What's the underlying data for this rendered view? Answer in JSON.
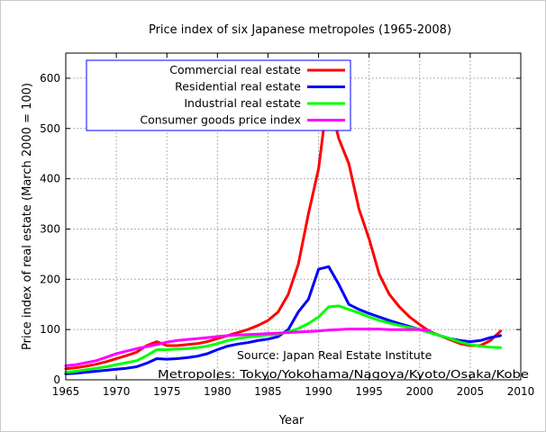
{
  "chart_data": {
    "type": "line",
    "title": "Price index of six Japanese metropoles (1965-2008)",
    "xlabel": "Year",
    "ylabel": "Price index of real estate (March 2000 = 100)",
    "xlim": [
      1965,
      2010
    ],
    "ylim": [
      0,
      650
    ],
    "xticks": [
      1965,
      1970,
      1975,
      1980,
      1985,
      1990,
      1995,
      2000,
      2005,
      2010
    ],
    "yticks": [
      0,
      100,
      200,
      300,
      400,
      500,
      600
    ],
    "grid": true,
    "legend_position": "top-left",
    "annotations": [
      "Source: Japan Real Estate Institute",
      "Metropoles: Tokyo/Yokohama/Nagoya/Kyoto/Osaka/Kobe"
    ],
    "series": [
      {
        "name": "Commercial real estate",
        "color": "#ff0000",
        "points": [
          [
            1965,
            22
          ],
          [
            1966,
            24
          ],
          [
            1967,
            27
          ],
          [
            1968,
            31
          ],
          [
            1969,
            36
          ],
          [
            1970,
            42
          ],
          [
            1971,
            48
          ],
          [
            1972,
            55
          ],
          [
            1973,
            68
          ],
          [
            1974,
            76
          ],
          [
            1975,
            68
          ],
          [
            1976,
            68
          ],
          [
            1977,
            70
          ],
          [
            1978,
            72
          ],
          [
            1979,
            76
          ],
          [
            1980,
            82
          ],
          [
            1981,
            88
          ],
          [
            1982,
            94
          ],
          [
            1983,
            100
          ],
          [
            1984,
            108
          ],
          [
            1985,
            118
          ],
          [
            1986,
            135
          ],
          [
            1987,
            170
          ],
          [
            1988,
            230
          ],
          [
            1989,
            330
          ],
          [
            1990,
            420
          ],
          [
            1990.5,
            500
          ],
          [
            1991,
            510
          ],
          [
            1991.5,
            520
          ],
          [
            1992,
            480
          ],
          [
            1993,
            430
          ],
          [
            1994,
            340
          ],
          [
            1995,
            280
          ],
          [
            1996,
            210
          ],
          [
            1997,
            170
          ],
          [
            1998,
            145
          ],
          [
            1999,
            125
          ],
          [
            2000,
            110
          ],
          [
            2001,
            96
          ],
          [
            2002,
            88
          ],
          [
            2003,
            80
          ],
          [
            2004,
            72
          ],
          [
            2005,
            68
          ],
          [
            2006,
            68
          ],
          [
            2007,
            78
          ],
          [
            2008,
            97
          ]
        ]
      },
      {
        "name": "Residential real estate",
        "color": "#0000ff",
        "points": [
          [
            1965,
            12
          ],
          [
            1966,
            13
          ],
          [
            1967,
            15
          ],
          [
            1968,
            17
          ],
          [
            1969,
            19
          ],
          [
            1970,
            21
          ],
          [
            1971,
            23
          ],
          [
            1972,
            26
          ],
          [
            1973,
            33
          ],
          [
            1974,
            42
          ],
          [
            1975,
            41
          ],
          [
            1976,
            42
          ],
          [
            1977,
            44
          ],
          [
            1978,
            47
          ],
          [
            1979,
            52
          ],
          [
            1980,
            60
          ],
          [
            1981,
            67
          ],
          [
            1982,
            71
          ],
          [
            1983,
            74
          ],
          [
            1984,
            78
          ],
          [
            1985,
            81
          ],
          [
            1986,
            86
          ],
          [
            1987,
            100
          ],
          [
            1988,
            135
          ],
          [
            1989,
            160
          ],
          [
            1990,
            220
          ],
          [
            1991,
            225
          ],
          [
            1992,
            190
          ],
          [
            1993,
            150
          ],
          [
            1994,
            140
          ],
          [
            1995,
            132
          ],
          [
            1996,
            125
          ],
          [
            1997,
            118
          ],
          [
            1998,
            112
          ],
          [
            1999,
            106
          ],
          [
            2000,
            100
          ],
          [
            2001,
            94
          ],
          [
            2002,
            88
          ],
          [
            2003,
            82
          ],
          [
            2004,
            78
          ],
          [
            2005,
            76
          ],
          [
            2006,
            78
          ],
          [
            2007,
            84
          ],
          [
            2008,
            88
          ]
        ]
      },
      {
        "name": "Industrial real estate",
        "color": "#00ff00",
        "points": [
          [
            1965,
            15
          ],
          [
            1966,
            17
          ],
          [
            1967,
            20
          ],
          [
            1968,
            23
          ],
          [
            1969,
            26
          ],
          [
            1970,
            30
          ],
          [
            1971,
            34
          ],
          [
            1972,
            38
          ],
          [
            1973,
            48
          ],
          [
            1974,
            60
          ],
          [
            1975,
            60
          ],
          [
            1976,
            61
          ],
          [
            1977,
            62
          ],
          [
            1978,
            64
          ],
          [
            1979,
            67
          ],
          [
            1980,
            72
          ],
          [
            1981,
            78
          ],
          [
            1982,
            82
          ],
          [
            1983,
            85
          ],
          [
            1984,
            87
          ],
          [
            1985,
            89
          ],
          [
            1986,
            91
          ],
          [
            1987,
            95
          ],
          [
            1988,
            102
          ],
          [
            1989,
            112
          ],
          [
            1990,
            125
          ],
          [
            1991,
            145
          ],
          [
            1992,
            147
          ],
          [
            1993,
            140
          ],
          [
            1994,
            133
          ],
          [
            1995,
            125
          ],
          [
            1996,
            118
          ],
          [
            1997,
            113
          ],
          [
            1998,
            108
          ],
          [
            1999,
            104
          ],
          [
            2000,
            100
          ],
          [
            2001,
            94
          ],
          [
            2002,
            88
          ],
          [
            2003,
            82
          ],
          [
            2004,
            75
          ],
          [
            2005,
            70
          ],
          [
            2006,
            67
          ],
          [
            2007,
            65
          ],
          [
            2008,
            64
          ]
        ]
      },
      {
        "name": "Consumer goods price index",
        "color": "#ff00ff",
        "points": [
          [
            1965,
            28
          ],
          [
            1966,
            30
          ],
          [
            1967,
            34
          ],
          [
            1968,
            38
          ],
          [
            1969,
            45
          ],
          [
            1970,
            52
          ],
          [
            1971,
            57
          ],
          [
            1972,
            62
          ],
          [
            1973,
            66
          ],
          [
            1974,
            70
          ],
          [
            1975,
            75
          ],
          [
            1976,
            78
          ],
          [
            1977,
            80
          ],
          [
            1978,
            82
          ],
          [
            1979,
            84
          ],
          [
            1980,
            86
          ],
          [
            1981,
            88
          ],
          [
            1982,
            89
          ],
          [
            1983,
            90
          ],
          [
            1984,
            91
          ],
          [
            1985,
            92
          ],
          [
            1986,
            93
          ],
          [
            1987,
            94
          ],
          [
            1988,
            95
          ],
          [
            1989,
            96
          ],
          [
            1990,
            97
          ],
          [
            1991,
            99
          ],
          [
            1992,
            100
          ],
          [
            1993,
            101
          ],
          [
            1994,
            101
          ],
          [
            1995,
            101
          ],
          [
            1996,
            101
          ],
          [
            1997,
            100
          ],
          [
            1998,
            100
          ],
          [
            1999,
            100
          ],
          [
            2000,
            100
          ],
          [
            2001,
            98
          ]
        ]
      }
    ]
  }
}
